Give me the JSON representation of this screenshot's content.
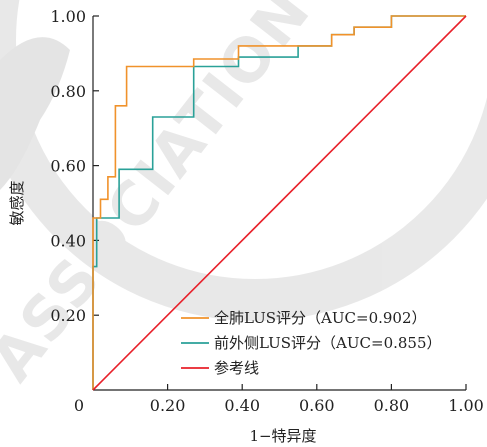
{
  "chart_data": {
    "type": "line",
    "xlabel": "1−特异度",
    "ylabel": "敏感度",
    "xlim": [
      0,
      1
    ],
    "ylim": [
      0,
      1
    ],
    "x_ticks": [
      "0",
      "0.20",
      "0.40",
      "0.60",
      "0.80",
      "1.00"
    ],
    "y_ticks": [
      "0.20",
      "0.40",
      "0.60",
      "0.80",
      "1.00"
    ],
    "grid": false,
    "legend_position": "bottom-right",
    "series": [
      {
        "name": "全肺LUS评分（AUC=0.902）",
        "color": "#f0922b",
        "points": [
          [
            0,
            0
          ],
          [
            0,
            0.46
          ],
          [
            0.02,
            0.46
          ],
          [
            0.02,
            0.51
          ],
          [
            0.04,
            0.51
          ],
          [
            0.04,
            0.57
          ],
          [
            0.06,
            0.57
          ],
          [
            0.06,
            0.76
          ],
          [
            0.09,
            0.76
          ],
          [
            0.09,
            0.865
          ],
          [
            0.27,
            0.865
          ],
          [
            0.27,
            0.885
          ],
          [
            0.39,
            0.885
          ],
          [
            0.39,
            0.92
          ],
          [
            0.64,
            0.92
          ],
          [
            0.64,
            0.95
          ],
          [
            0.7,
            0.95
          ],
          [
            0.7,
            0.97
          ],
          [
            0.8,
            0.97
          ],
          [
            0.8,
            1.0
          ],
          [
            1.0,
            1.0
          ]
        ]
      },
      {
        "name": "前外侧LUS评分（AUC=0.855）",
        "color": "#2aa198",
        "points": [
          [
            0,
            0
          ],
          [
            0,
            0.33
          ],
          [
            0.01,
            0.33
          ],
          [
            0.01,
            0.46
          ],
          [
            0.07,
            0.46
          ],
          [
            0.07,
            0.59
          ],
          [
            0.16,
            0.59
          ],
          [
            0.16,
            0.73
          ],
          [
            0.27,
            0.73
          ],
          [
            0.27,
            0.865
          ],
          [
            0.39,
            0.865
          ],
          [
            0.39,
            0.89
          ],
          [
            0.55,
            0.89
          ],
          [
            0.55,
            0.92
          ],
          [
            0.64,
            0.92
          ],
          [
            0.64,
            0.95
          ],
          [
            0.7,
            0.95
          ],
          [
            0.7,
            0.97
          ],
          [
            0.8,
            0.97
          ],
          [
            0.8,
            1.0
          ],
          [
            1.0,
            1.0
          ]
        ]
      },
      {
        "name": "参考线",
        "color": "#e8202a",
        "points": [
          [
            0,
            0
          ],
          [
            1,
            1
          ]
        ]
      }
    ]
  }
}
